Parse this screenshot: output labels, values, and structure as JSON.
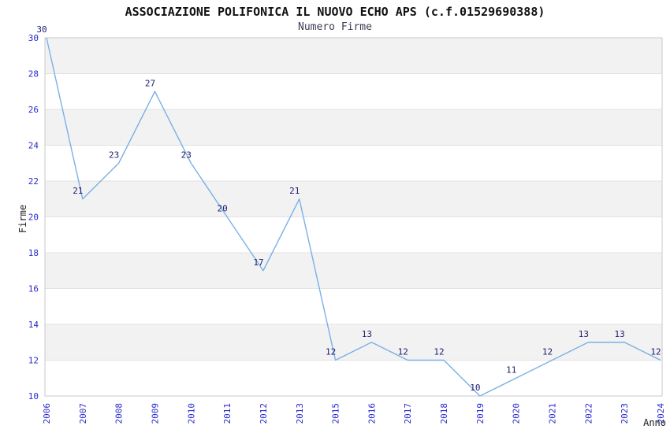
{
  "header": {
    "title": "ASSOCIAZIONE POLIFONICA IL NUOVO ECHO APS (c.f.01529690388)",
    "subtitle": "Numero Firme"
  },
  "chart_data": {
    "type": "line",
    "title": "ASSOCIAZIONE POLIFONICA IL NUOVO ECHO APS (c.f.01529690388)",
    "subtitle": "Numero Firme",
    "xlabel": "Anno",
    "ylabel": "Firme",
    "categories": [
      "2006",
      "2007",
      "2008",
      "2009",
      "2010",
      "2011",
      "2012",
      "2013",
      "2015",
      "2016",
      "2017",
      "2018",
      "2019",
      "2020",
      "2021",
      "2022",
      "2023",
      "2024"
    ],
    "values": [
      30,
      21,
      23,
      27,
      23,
      20,
      17,
      21,
      12,
      13,
      12,
      12,
      10,
      11,
      12,
      13,
      13,
      12
    ],
    "ylim": [
      10,
      30
    ],
    "yticks": [
      10,
      12,
      14,
      16,
      18,
      20,
      22,
      24,
      26,
      28,
      30
    ],
    "grid": "horizontal-bands-alternating",
    "legend": "none",
    "colors": {
      "line": "#7cb0e6",
      "data_label": "#1c1c6e",
      "tick_label": "#2828cf",
      "band_fill": "#f2f2f2",
      "grid_line": "#e2e2e2",
      "plot_border": "#c9c9c9"
    }
  }
}
